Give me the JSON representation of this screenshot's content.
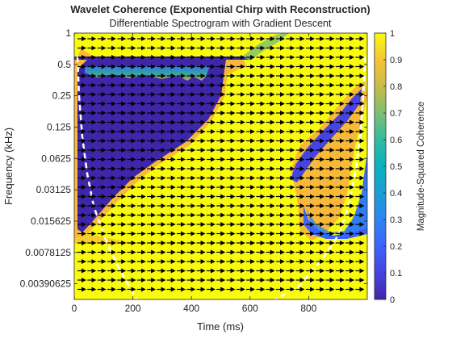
{
  "chart_data": {
    "type": "heatmap",
    "title": "Wavelet Coherence (Exponential Chirp with Reconstruction)",
    "subtitle": "Differentiable Spectrogram with Gradient Descent",
    "xlabel": "Time (ms)",
    "ylabel": "Frequency (kHz)",
    "xlim": [
      0,
      1000
    ],
    "ylim_log2": [
      -8.5,
      0
    ],
    "yscale": "log2",
    "x_ticks": [
      "0",
      "200",
      "400",
      "600",
      "800"
    ],
    "x_tick_values": [
      0,
      200,
      400,
      600,
      800
    ],
    "y_ticks": [
      "1",
      "0.5",
      "0.25",
      "0.125",
      "0.0625",
      "0.03125",
      "0.015625",
      "0.0078125",
      "0.00390625"
    ],
    "y_tick_values": [
      1,
      0.5,
      0.25,
      0.125,
      0.0625,
      0.03125,
      0.015625,
      0.0078125,
      0.00390625
    ],
    "colorbar": {
      "label": "Magnitude-Squared Coherence",
      "ticks": [
        "0",
        "0.1",
        "0.2",
        "0.3",
        "0.4",
        "0.5",
        "0.6",
        "0.7",
        "0.8",
        "0.9",
        "1"
      ],
      "tick_values": [
        0,
        0.1,
        0.2,
        0.3,
        0.4,
        0.5,
        0.6,
        0.7,
        0.8,
        0.9,
        1
      ],
      "range": [
        0,
        1
      ],
      "colormap": "parula"
    },
    "arrows": "phase arrows pointing right (in phase), one row per frequency band",
    "cone_of_influence": "white dashed lines",
    "colors": {
      "high": "#f9fb0e",
      "low": "#3e26a8",
      "orange": "#f7b937",
      "arrow": "#000000",
      "coi": "#ffffff"
    }
  }
}
